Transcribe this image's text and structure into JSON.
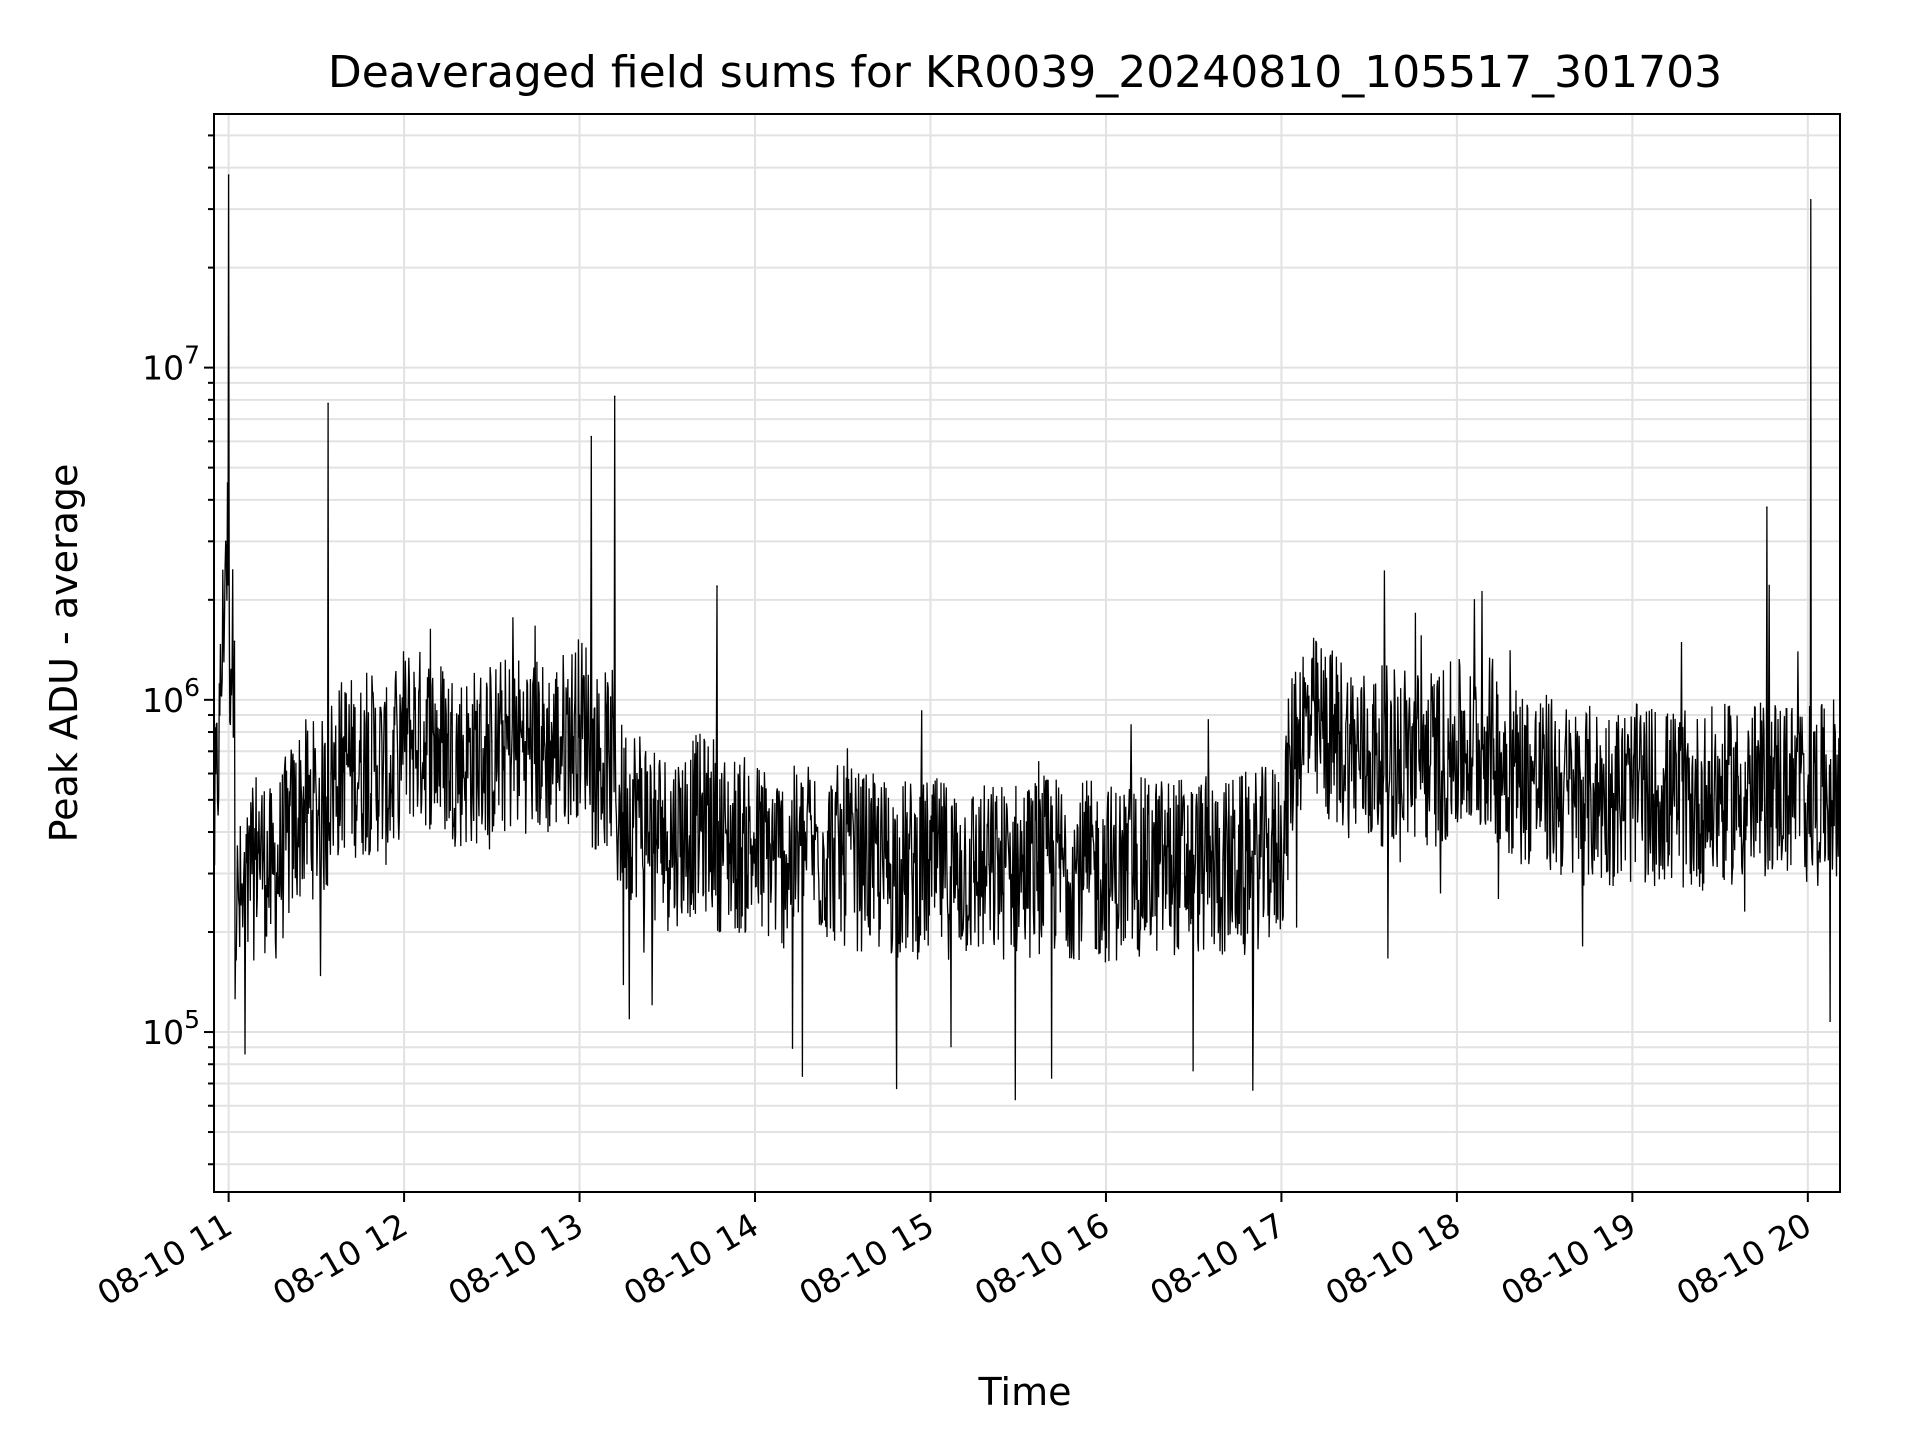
{
  "chart_data": {
    "type": "line",
    "title": "Deaveraged field sums for KR0039_20240810_105517_301703",
    "xlabel": "Time",
    "ylabel": "Peak ADU - average",
    "yscale": "log",
    "ylim": [
      33000,
      58000000
    ],
    "xlim": [
      "2024-08-10 10:55",
      "2024-08-10 20:11"
    ],
    "grid": true,
    "x_ticks": [
      "08-10 11",
      "08-10 12",
      "08-10 13",
      "08-10 14",
      "08-10 15",
      "08-10 16",
      "08-10 17",
      "08-10 18",
      "08-10 19",
      "08-10 20"
    ],
    "y_ticks": [
      {
        "base": "10",
        "exp": "5",
        "value": 100000
      },
      {
        "base": "10",
        "exp": "6",
        "value": 1000000
      },
      {
        "base": "10",
        "exp": "7",
        "value": 10000000
      }
    ],
    "line_color": "#000000",
    "series": [
      {
        "x": [
          "10:55",
          "10:57",
          "10:59",
          "11:00",
          "11:02",
          "11:05",
          "11:08",
          "11:10",
          "11:12",
          "11:15",
          "11:20",
          "11:25",
          "11:30",
          "11:34",
          "11:35",
          "11:40",
          "11:45",
          "11:50",
          "11:55",
          "12:00",
          "12:10",
          "12:20",
          "12:30",
          "12:40",
          "12:50",
          "13:00",
          "13:04",
          "13:10",
          "13:12",
          "13:20",
          "13:30",
          "13:40",
          "13:47",
          "13:50",
          "14:00",
          "14:10",
          "14:20",
          "14:30",
          "14:40",
          "14:50",
          "15:00",
          "15:10",
          "15:20",
          "15:30",
          "15:40",
          "15:50",
          "16:00",
          "16:10",
          "16:20",
          "16:30",
          "16:40",
          "16:50",
          "16:55",
          "17:00",
          "17:05",
          "17:10",
          "17:20",
          "17:30",
          "17:40",
          "17:50",
          "18:00",
          "18:10",
          "18:20",
          "18:30",
          "18:40",
          "18:50",
          "19:00",
          "19:10",
          "19:20",
          "19:30",
          "19:40",
          "19:46",
          "19:50",
          "20:00",
          "20:01",
          "20:05",
          "20:11"
        ],
        "y": [
          400000,
          900000,
          3000000,
          38000000,
          1500000,
          250000,
          300000,
          400000,
          350000,
          300000,
          400000,
          500000,
          500000,
          7800000,
          600000,
          700000,
          650000,
          700000,
          600000,
          850000,
          800000,
          700000,
          750000,
          800000,
          750000,
          900000,
          6200000,
          700000,
          8200000,
          500000,
          400000,
          450000,
          2200000,
          400000,
          380000,
          350000,
          380000,
          360000,
          340000,
          330000,
          330000,
          330000,
          320000,
          330000,
          340000,
          330000,
          320000,
          330000,
          340000,
          340000,
          330000,
          350000,
          360000,
          380000,
          900000,
          900000,
          800000,
          700000,
          750000,
          700000,
          750000,
          800000,
          650000,
          600000,
          550000,
          550000,
          550000,
          550000,
          520000,
          550000,
          560000,
          3800000,
          600000,
          550000,
          32000000,
          550000,
          600000
        ]
      }
    ]
  }
}
